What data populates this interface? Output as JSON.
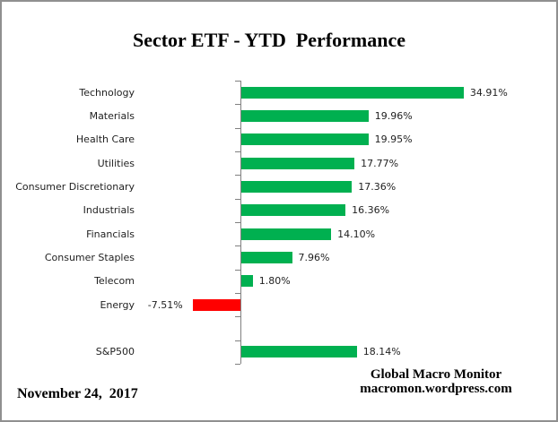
{
  "title": "Sector ETF - YTD  Performance",
  "footer": {
    "date": "November 24,  2017",
    "source_line1": "Global Macro Monitor",
    "source_line2": "macromon.wordpress.com"
  },
  "chart_data": {
    "type": "bar",
    "orientation": "horizontal",
    "title": "Sector ETF - YTD  Performance",
    "categories": [
      "Technology",
      "Materials",
      "Health Care",
      "Utilities",
      "Consumer Discretionary",
      "Industrials",
      "Financials",
      "Consumer Staples",
      "Telecom",
      "Energy",
      "",
      "S&P500"
    ],
    "values": [
      34.91,
      19.96,
      19.95,
      17.77,
      17.36,
      16.36,
      14.1,
      7.96,
      1.8,
      -7.51,
      null,
      18.14
    ],
    "value_labels": [
      "34.91%",
      "19.96%",
      "19.95%",
      "17.77%",
      "17.36%",
      "16.36%",
      "14.10%",
      "7.96%",
      "1.80%",
      "-7.51%",
      "",
      "18.14%"
    ],
    "xlabel": "",
    "ylabel": "",
    "value_axis_visible": false,
    "grid": false,
    "legend": false,
    "colors": {
      "positive_bar": "#00B050",
      "negative_bar": "#FF0000",
      "axis": "#808080",
      "text": "#1f1f1f"
    }
  }
}
